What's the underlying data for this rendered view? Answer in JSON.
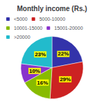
{
  "chart_data": {
    "type": "pie",
    "title": "Monthly income (Rs.)",
    "categories": [
      "<5000",
      "5000-10000",
      "10001-15000",
      "15001-20000",
      ">20000"
    ],
    "values": [
      22,
      29,
      16,
      10,
      23
    ],
    "value_labels": [
      "22%",
      "29%",
      "16%",
      "10%",
      "23%"
    ],
    "colors": [
      "#3333aa",
      "#cc2222",
      "#88bb00",
      "#8833cc",
      "#22bbcc"
    ],
    "data_labels": true,
    "legend": "top"
  }
}
